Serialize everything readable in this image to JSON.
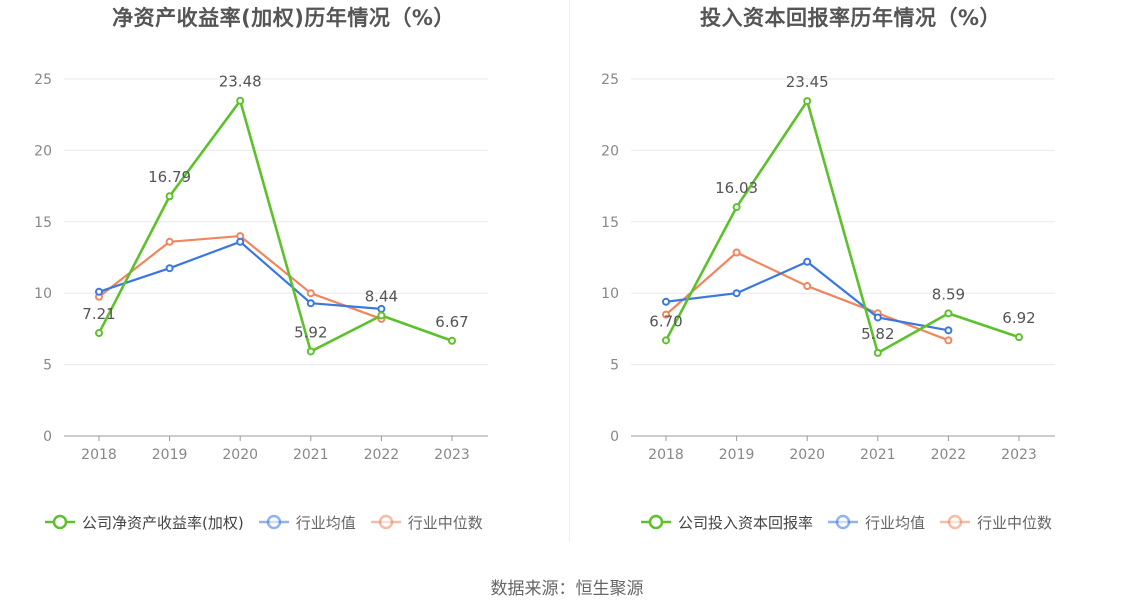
{
  "source": "数据来源：恒生聚源",
  "colors": {
    "company": "#5cc12a",
    "industry_avg": "#3a78e0",
    "industry_median": "#f0865e",
    "grid": "#e6e8ee",
    "axis": "#999999"
  },
  "chart_data": [
    {
      "type": "line",
      "title": "净资产收益率(加权)历年情况（%）",
      "categories": [
        "2018",
        "2019",
        "2020",
        "2021",
        "2022",
        "2023"
      ],
      "ylim": [
        0,
        25
      ],
      "yticks": [
        "0",
        "5",
        "10",
        "15",
        "20",
        "25"
      ],
      "grid": true,
      "legend_position": "bottom",
      "series": [
        {
          "name": "公司净资产收益率(加权)",
          "key": "company",
          "values": [
            7.21,
            16.79,
            23.48,
            5.92,
            8.44,
            6.67
          ],
          "labels": [
            "7.21",
            "16.79",
            "23.48",
            "5.92",
            "8.44",
            "6.67"
          ]
        },
        {
          "name": "行业均值",
          "key": "industry_avg",
          "values": [
            10.1,
            11.75,
            13.6,
            9.3,
            8.9,
            null
          ]
        },
        {
          "name": "行业中位数",
          "key": "industry_median",
          "values": [
            9.75,
            13.6,
            14.0,
            10.0,
            8.2,
            null
          ]
        }
      ]
    },
    {
      "type": "line",
      "title": "投入资本回报率历年情况（%）",
      "categories": [
        "2018",
        "2019",
        "2020",
        "2021",
        "2022",
        "2023"
      ],
      "ylim": [
        0,
        25
      ],
      "yticks": [
        "0",
        "5",
        "10",
        "15",
        "20",
        "25"
      ],
      "grid": true,
      "legend_position": "bottom",
      "series": [
        {
          "name": "公司投入资本回报率",
          "key": "company",
          "values": [
            6.7,
            16.03,
            23.45,
            5.82,
            8.59,
            6.92
          ],
          "labels": [
            "6.70",
            "16.03",
            "23.45",
            "5.82",
            "8.59",
            "6.92"
          ]
        },
        {
          "name": "行业均值",
          "key": "industry_avg",
          "values": [
            9.4,
            10.0,
            12.2,
            8.3,
            7.4,
            null
          ]
        },
        {
          "name": "行业中位数",
          "key": "industry_median",
          "values": [
            8.5,
            12.85,
            10.5,
            8.6,
            6.7,
            null
          ]
        }
      ]
    }
  ]
}
